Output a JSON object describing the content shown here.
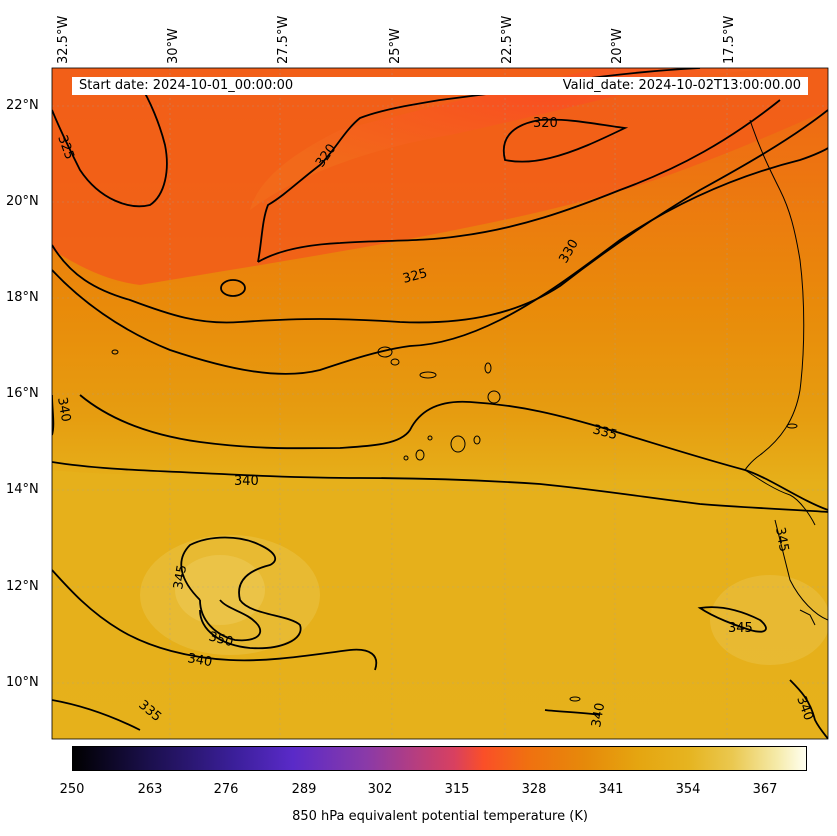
{
  "header": {
    "start_date": "Start date: 2024-10-01_00:00:00",
    "valid_date": "Valid_date: 2024-10-02T13:00:00.00"
  },
  "longitude_labels": [
    "32.5°W",
    "30°W",
    "27.5°W",
    "25°W",
    "22.5°W",
    "20°W",
    "17.5°W"
  ],
  "latitude_labels": [
    "22°N",
    "20°N",
    "18°N",
    "16°N",
    "14°N",
    "12°N",
    "10°N"
  ],
  "contour_labels": [
    "325",
    "320",
    "320",
    "330",
    "325",
    "340",
    "335",
    "340",
    "345",
    "350",
    "340",
    "335",
    "340",
    "345",
    "345",
    "340"
  ],
  "colorbar": {
    "ticks": [
      "250",
      "263",
      "276",
      "289",
      "302",
      "315",
      "328",
      "341",
      "354",
      "367"
    ],
    "label": "850 hPa equivalent potential temperature (K)"
  },
  "colors": {
    "warm_core": "#f7541e",
    "orange": "#e88a0a",
    "yellow": "#e6b21c",
    "light_yellow": "#eac64a"
  }
}
